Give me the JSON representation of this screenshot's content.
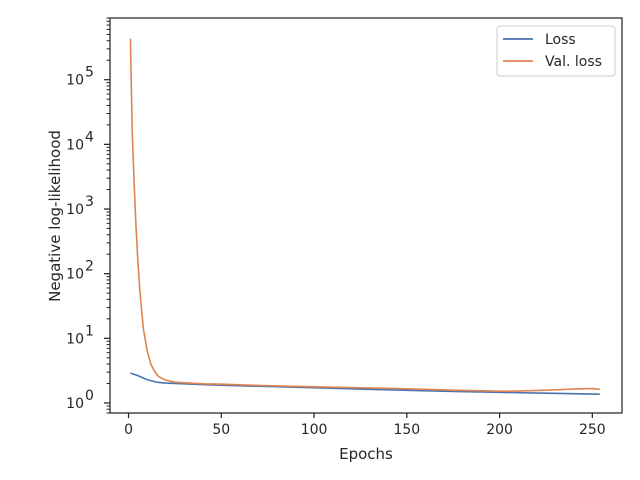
{
  "chart_data": {
    "type": "line",
    "xlabel": "Epochs",
    "ylabel": "Negative log-likelihood",
    "x_ticks": [
      0,
      50,
      100,
      150,
      200,
      250
    ],
    "y_scale": "log",
    "y_ticks": [
      {
        "value": 1,
        "base": "10",
        "exp": "0"
      },
      {
        "value": 10,
        "base": "10",
        "exp": "1"
      },
      {
        "value": 100,
        "base": "10",
        "exp": "2"
      },
      {
        "value": 1000,
        "base": "10",
        "exp": "3"
      },
      {
        "value": 10000,
        "base": "10",
        "exp": "4"
      },
      {
        "value": 100000,
        "base": "10",
        "exp": "5"
      }
    ],
    "xlim": [
      -10,
      266
    ],
    "ylim": [
      0.7,
      900000
    ],
    "grid": false,
    "legend_position": "top-right",
    "series": [
      {
        "name": "Loss",
        "color": "#4c72b0",
        "x": [
          1,
          5,
          10,
          15,
          20,
          30,
          40,
          50,
          75,
          100,
          125,
          150,
          175,
          200,
          225,
          254
        ],
        "y": [
          2.9,
          2.65,
          2.3,
          2.1,
          2.03,
          1.98,
          1.93,
          1.88,
          1.8,
          1.72,
          1.64,
          1.57,
          1.51,
          1.46,
          1.42,
          1.37
        ]
      },
      {
        "name": "Val. loss",
        "color": "#dd8452",
        "x": [
          1,
          2,
          3,
          4,
          5,
          6,
          7,
          8,
          10,
          12,
          14,
          16,
          18,
          20,
          25,
          30,
          40,
          50,
          75,
          100,
          125,
          150,
          175,
          200,
          210,
          225,
          240,
          250,
          254
        ],
        "y": [
          430000,
          15000,
          2500,
          550,
          160,
          60,
          28,
          14,
          6.5,
          4.0,
          3.1,
          2.6,
          2.4,
          2.25,
          2.1,
          2.05,
          1.98,
          1.95,
          1.85,
          1.78,
          1.72,
          1.66,
          1.58,
          1.52,
          1.53,
          1.58,
          1.64,
          1.67,
          1.63
        ]
      }
    ]
  }
}
